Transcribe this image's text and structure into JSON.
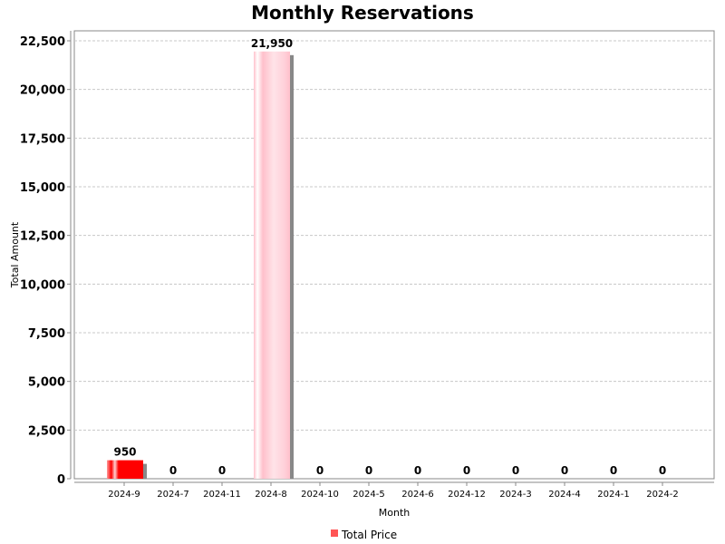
{
  "chart_data": {
    "type": "bar",
    "title": "Monthly Reservations",
    "xlabel": "Month",
    "ylabel": "Total Amount",
    "ylim": [
      0,
      22500
    ],
    "yticks": [
      0,
      2500,
      5000,
      7500,
      10000,
      12500,
      15000,
      17500,
      20000,
      22500
    ],
    "ytick_labels": [
      "0",
      "2,500",
      "5,000",
      "7,500",
      "10,000",
      "12,500",
      "15,000",
      "17,500",
      "20,000",
      "22,500"
    ],
    "categories": [
      "2024-9",
      "2024-7",
      "2024-11",
      "2024-8",
      "2024-10",
      "2024-5",
      "2024-6",
      "2024-12",
      "2024-3",
      "2024-4",
      "2024-1",
      "2024-2"
    ],
    "series": [
      {
        "name": "Total Price",
        "values": [
          950,
          0,
          0,
          21950,
          0,
          0,
          0,
          0,
          0,
          0,
          0,
          0
        ],
        "value_labels": [
          "950",
          "0",
          "0",
          "21,950",
          "0",
          "0",
          "0",
          "0",
          "0",
          "0",
          "0",
          "0"
        ]
      }
    ],
    "bar_colors": [
      "#ff0000",
      "#ff0000",
      "#ff0000",
      "#ffc0cb",
      "#ff0000",
      "#ff0000",
      "#ff0000",
      "#ff0000",
      "#ff0000",
      "#ff0000",
      "#ff0000",
      "#ff0000"
    ],
    "legend_color": "#ff5555",
    "grid": true,
    "legend": "bottom"
  }
}
